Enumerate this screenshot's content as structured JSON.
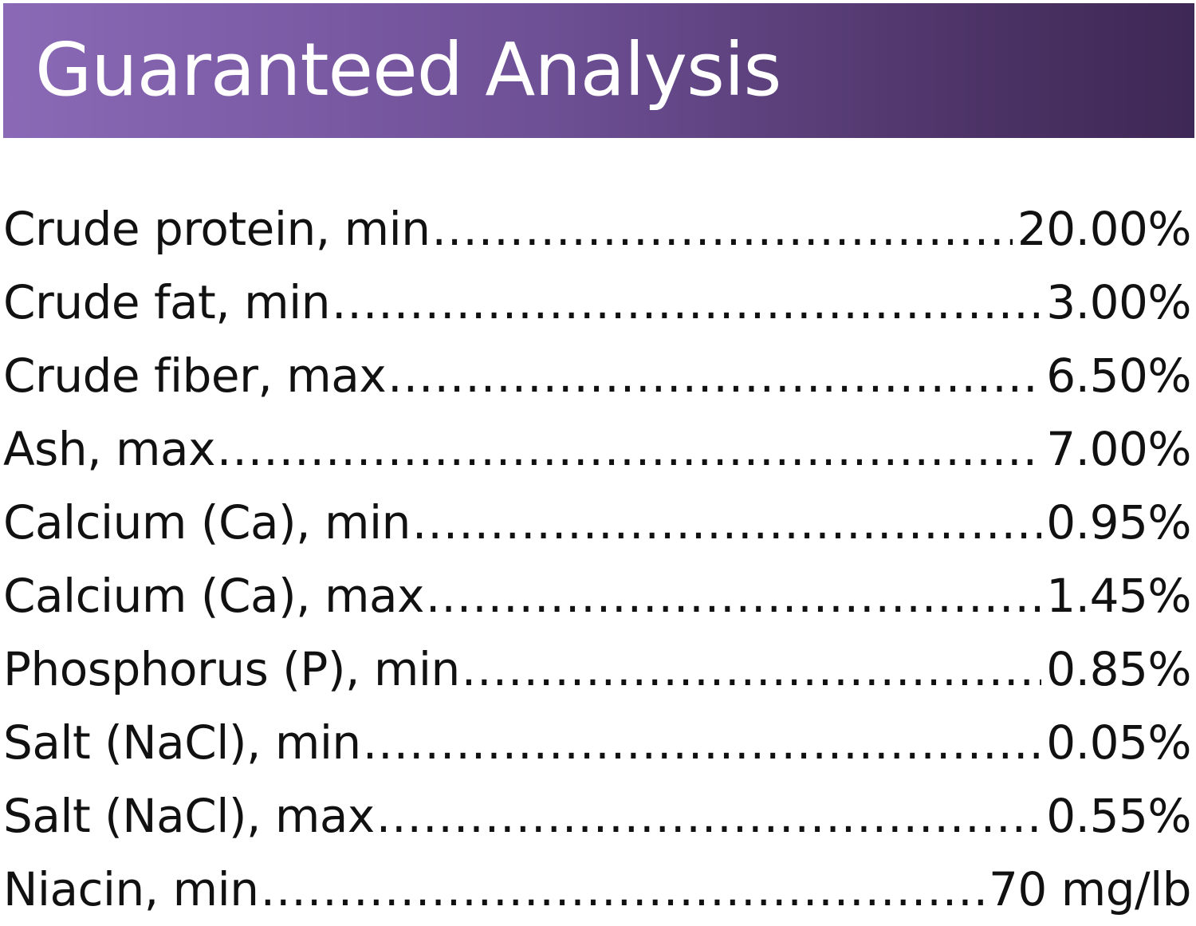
{
  "header": {
    "title": "Guaranteed Analysis",
    "background_start": "#8a69b6",
    "background_end": "#3e2855",
    "text_color": "#ffffff"
  },
  "rows": [
    {
      "label": "Crude protein, min",
      "value": "20.00%"
    },
    {
      "label": "Crude fat, min",
      "value": "3.00%"
    },
    {
      "label": "Crude fiber, max",
      "value": "6.50%"
    },
    {
      "label": "Ash, max",
      "value": "7.00%"
    },
    {
      "label": "Calcium (Ca), min",
      "value": "0.95%"
    },
    {
      "label": "Calcium (Ca), max",
      "value": "1.45%"
    },
    {
      "label": "Phosphorus (P), min",
      "value": "0.85%"
    },
    {
      "label": "Salt (NaCl), min",
      "value": "0.05%"
    },
    {
      "label": "Salt (NaCl), max",
      "value": "0.55%"
    },
    {
      "label": "Niacin, min",
      "value": "70 mg/lb"
    }
  ]
}
